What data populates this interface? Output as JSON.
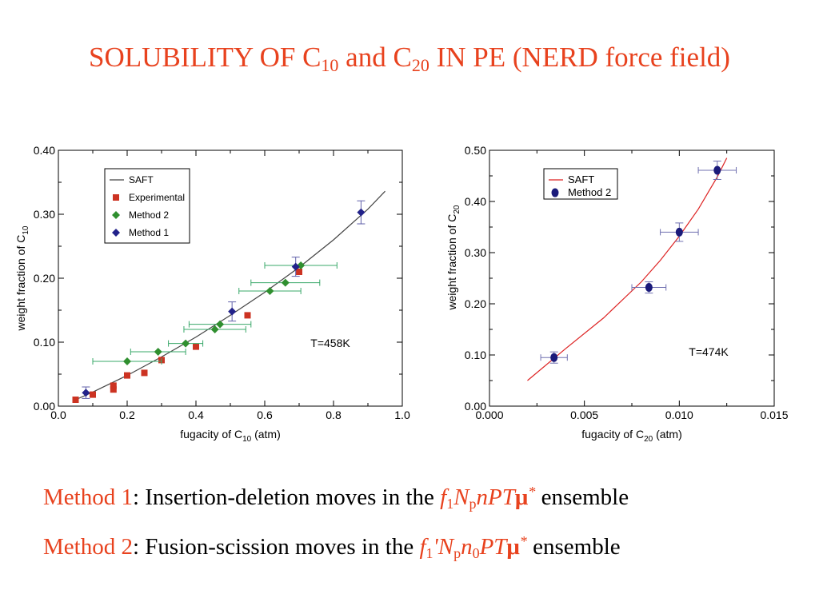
{
  "title": {
    "pre": "SOLUBILITY OF C",
    "sub1": "10",
    "mid": " and C",
    "sub2": "20",
    "post": " IN PE (NERD force field)"
  },
  "method1": {
    "label": "Method 1",
    "text": ": Insertion-deletion moves in the ",
    "f": "f",
    "f_sub": "1",
    "N": "N",
    "N_sub": "p",
    "rest": "nPT",
    "mu": "μ",
    "star": "*",
    "suffix": " ensemble"
  },
  "method2": {
    "label": "Method 2",
    "text": ": Fusion-scission moves in the ",
    "f": "f",
    "f_sub": "1",
    "prime": "'",
    "N": "N",
    "N_sub": "p",
    "n": "n",
    "n_sub": "0",
    "rest": "PT",
    "mu": "μ",
    "star": "*",
    "suffix": " ensemble"
  },
  "chart_data": [
    {
      "type": "scatter",
      "xlabel": "fugacity of C",
      "xlabel_sub": "10",
      "xlabel_unit": " (atm)",
      "ylabel": "weight fraction of C",
      "ylabel_sub": "10",
      "xlim": [
        0.0,
        1.0
      ],
      "ylim": [
        0.0,
        0.4
      ],
      "xticks": [
        "0.0",
        "0.2",
        "0.4",
        "0.6",
        "0.8",
        "1.0"
      ],
      "yticks": [
        "0.00",
        "0.10",
        "0.20",
        "0.30",
        "0.40"
      ],
      "annotation": "T=458K",
      "legend_position": "top-left",
      "series": [
        {
          "name": "SAFT",
          "kind": "line",
          "color": "#444444",
          "x": [
            0.05,
            0.1,
            0.2,
            0.3,
            0.4,
            0.5,
            0.6,
            0.7,
            0.8,
            0.9,
            0.95
          ],
          "y": [
            0.01,
            0.022,
            0.048,
            0.077,
            0.108,
            0.142,
            0.178,
            0.217,
            0.26,
            0.308,
            0.336
          ]
        },
        {
          "name": "Experimental",
          "kind": "square",
          "color": "#cc3322",
          "x": [
            0.05,
            0.1,
            0.16,
            0.16,
            0.2,
            0.25,
            0.3,
            0.4,
            0.55,
            0.7
          ],
          "y": [
            0.01,
            0.018,
            0.026,
            0.032,
            0.048,
            0.052,
            0.072,
            0.093,
            0.142,
            0.21
          ]
        },
        {
          "name": "Method 2",
          "kind": "diamond",
          "color": "#2f8f2f",
          "errcolor": "#3aa86a",
          "x": [
            0.2,
            0.29,
            0.37,
            0.455,
            0.47,
            0.615,
            0.66,
            0.705
          ],
          "y": [
            0.07,
            0.085,
            0.098,
            0.12,
            0.128,
            0.18,
            0.193,
            0.22
          ],
          "xerr": [
            0.1,
            0.08,
            0.05,
            0.09,
            0.09,
            0.09,
            0.1,
            0.105
          ]
        },
        {
          "name": "Method 1",
          "kind": "diamond",
          "color": "#22228a",
          "errcolor": "#6060aa",
          "x": [
            0.08,
            0.505,
            0.69,
            0.88
          ],
          "y": [
            0.021,
            0.148,
            0.218,
            0.303
          ],
          "yerr": [
            0.009,
            0.015,
            0.015,
            0.018
          ]
        }
      ]
    },
    {
      "type": "scatter",
      "xlabel": "fugacity of C",
      "xlabel_sub": "20",
      "xlabel_unit": " (atm)",
      "ylabel": "weight fraction of C",
      "ylabel_sub": "20",
      "xlim": [
        0.0,
        0.015
      ],
      "ylim": [
        0.0,
        0.5
      ],
      "xticks": [
        "0.000",
        "0.005",
        "0.010",
        "0.015"
      ],
      "yticks": [
        "0.00",
        "0.10",
        "0.20",
        "0.30",
        "0.40",
        "0.50"
      ],
      "annotation": "T=474K",
      "legend_position": "top-left",
      "series": [
        {
          "name": "SAFT",
          "kind": "line",
          "color": "#dd2222",
          "x": [
            0.002,
            0.004,
            0.006,
            0.008,
            0.009,
            0.01,
            0.011,
            0.012,
            0.0125
          ],
          "y": [
            0.05,
            0.112,
            0.172,
            0.243,
            0.285,
            0.332,
            0.385,
            0.448,
            0.485
          ]
        },
        {
          "name": "Method 2",
          "kind": "circle",
          "color": "#1a1a7a",
          "errcolor": "#7070b0",
          "x": [
            0.0034,
            0.0084,
            0.01,
            0.012
          ],
          "y": [
            0.095,
            0.232,
            0.34,
            0.461
          ],
          "xerr": [
            0.0007,
            0.0009,
            0.001,
            0.001
          ],
          "yerr": [
            0.011,
            0.011,
            0.018,
            0.018
          ]
        }
      ]
    }
  ]
}
